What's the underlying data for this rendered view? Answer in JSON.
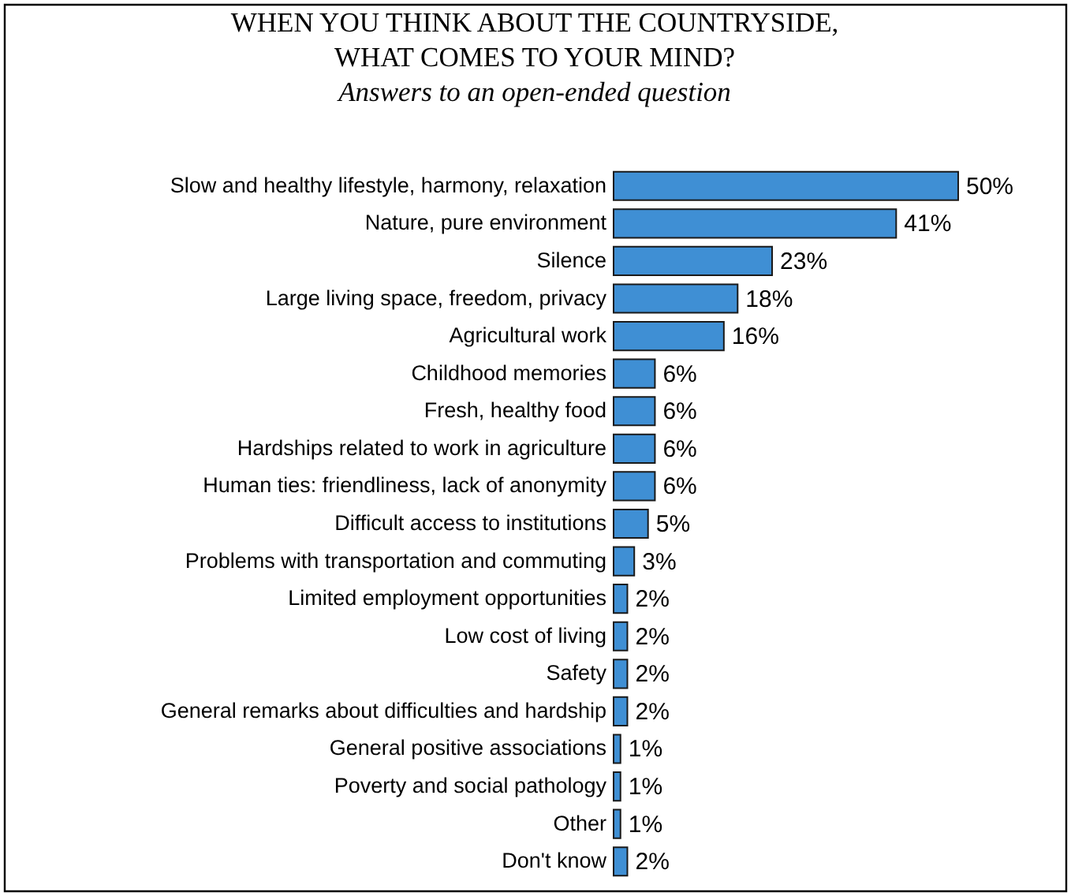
{
  "chart_data": {
    "type": "bar",
    "orientation": "horizontal",
    "title": "WHEN YOU THINK ABOUT THE COUNTRYSIDE,\nWHAT COMES TO YOUR MIND?",
    "subtitle": "Answers to an open-ended question",
    "categories": [
      "Slow and healthy lifestyle, harmony, relaxation",
      "Nature, pure environment",
      "Silence",
      "Large living space, freedom, privacy",
      "Agricultural work",
      "Childhood memories",
      "Fresh, healthy food",
      "Hardships related to work in agriculture",
      "Human ties: friendliness, lack of anonymity",
      "Difficult access to institutions",
      "Problems with transportation and commuting",
      "Limited employment opportunities",
      "Low cost of living",
      "Safety",
      "General remarks about difficulties and hardship",
      "General positive associations",
      "Poverty and social pathology",
      "Other",
      "Don't know"
    ],
    "values": [
      50,
      41,
      23,
      18,
      16,
      6,
      6,
      6,
      6,
      5,
      3,
      2,
      2,
      2,
      2,
      1,
      1,
      1,
      2
    ],
    "value_labels": [
      "50%",
      "41%",
      "23%",
      "18%",
      "16%",
      "6%",
      "6%",
      "6%",
      "6%",
      "5%",
      "3%",
      "2%",
      "2%",
      "2%",
      "2%",
      "1%",
      "1%",
      "1%",
      "2%"
    ],
    "color": "#3f8fd4",
    "grid": false
  }
}
